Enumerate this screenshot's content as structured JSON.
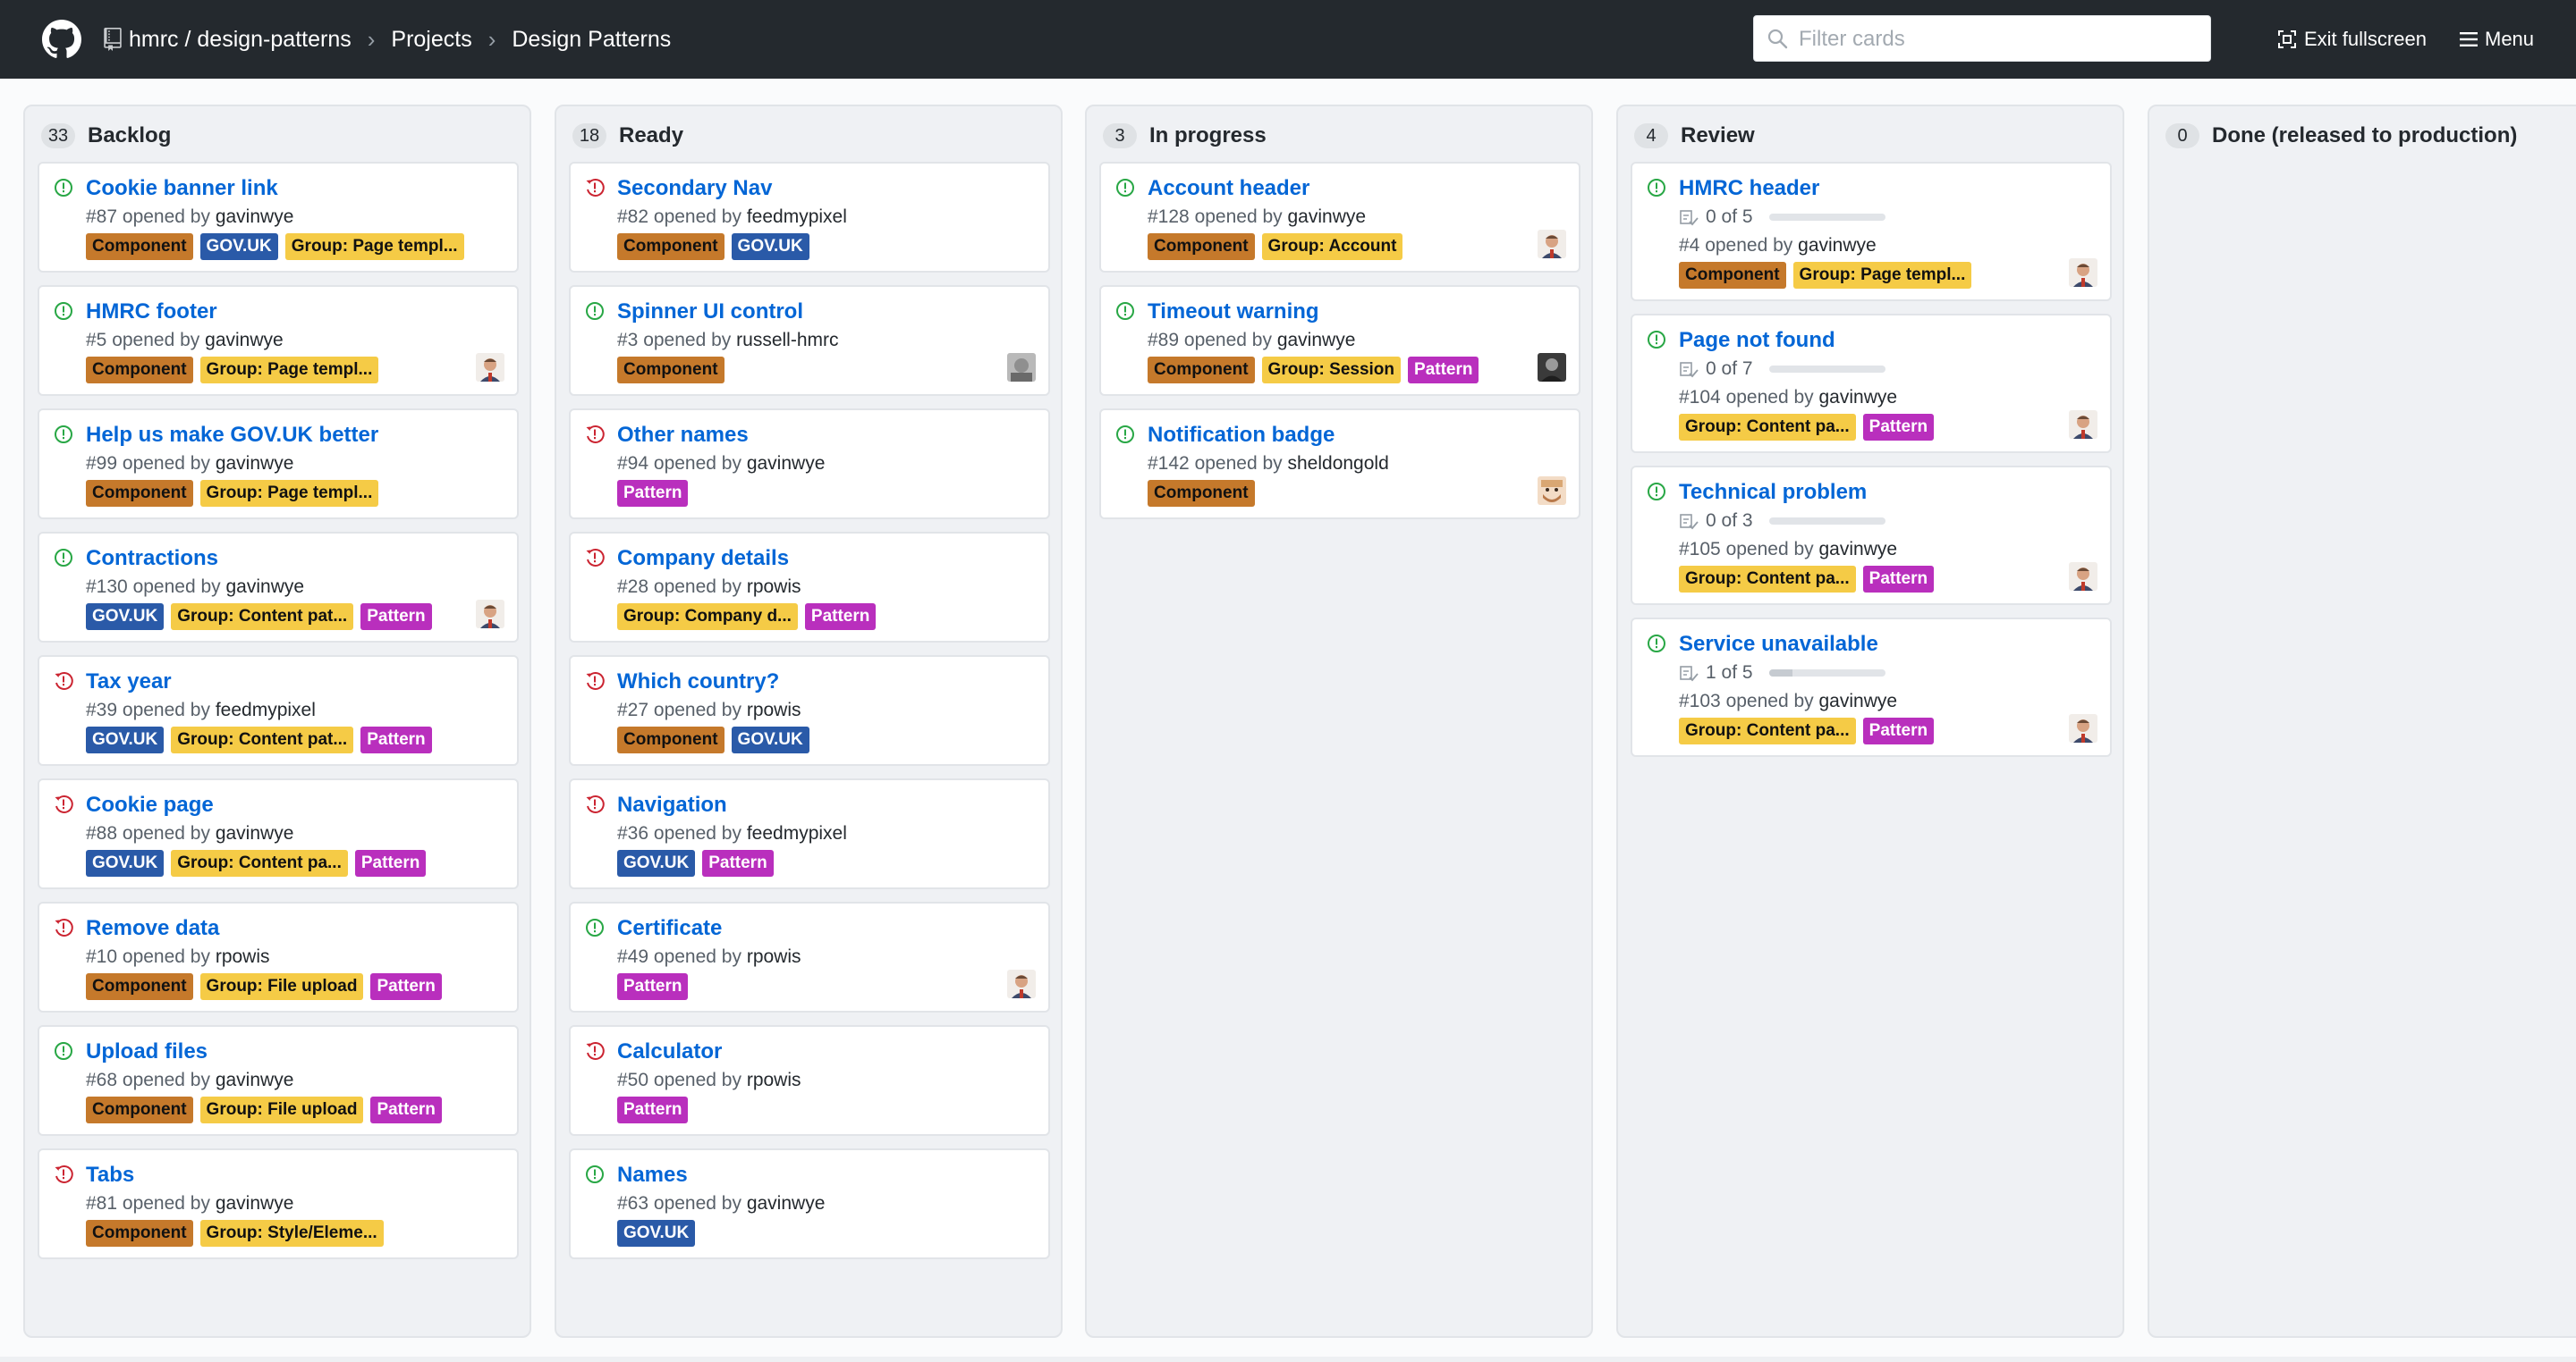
{
  "header": {
    "breadcrumb": {
      "repo": "hmrc / design-patterns",
      "projects": "Projects",
      "project": "Design Patterns",
      "separator": "›"
    },
    "filter_placeholder": "Filter cards",
    "exit_fullscreen": "Exit fullscreen",
    "menu": "Menu"
  },
  "colors": {
    "Component": "#c5792b",
    "GOV.UK": "#2a5aa8",
    "Group": "#f5cb46",
    "Pattern": "#b92fbd",
    "open": "#28a745",
    "closed": "#cb2431",
    "link": "#0366d6"
  },
  "columns": [
    {
      "name": "Backlog",
      "count": "33",
      "cards": [
        {
          "title": "Cookie banner link",
          "number": "#87",
          "opened_by": "opened by",
          "user": "gavinwye",
          "state": "open",
          "labels": [
            "Component",
            "GOV.UK",
            "Group: Page templ..."
          ],
          "avatar": ""
        },
        {
          "title": "HMRC footer",
          "number": "#5",
          "opened_by": "opened by",
          "user": "gavinwye",
          "state": "open",
          "labels": [
            "Component",
            "Group: Page templ..."
          ],
          "avatar": "face"
        },
        {
          "title": "Help us make GOV.UK better",
          "number": "#99",
          "opened_by": "opened by",
          "user": "gavinwye",
          "state": "open",
          "labels": [
            "Component",
            "Group: Page templ..."
          ],
          "avatar": ""
        },
        {
          "title": "Contractions",
          "number": "#130",
          "opened_by": "opened by",
          "user": "gavinwye",
          "state": "open",
          "labels": [
            "GOV.UK",
            "Group: Content pat...",
            "Pattern"
          ],
          "avatar": "face"
        },
        {
          "title": "Tax year",
          "number": "#39",
          "opened_by": "opened by",
          "user": "feedmypixel",
          "state": "closed",
          "labels": [
            "GOV.UK",
            "Group: Content pat...",
            "Pattern"
          ],
          "avatar": ""
        },
        {
          "title": "Cookie page",
          "number": "#88",
          "opened_by": "opened by",
          "user": "gavinwye",
          "state": "closed",
          "labels": [
            "GOV.UK",
            "Group: Content pa...",
            "Pattern"
          ],
          "avatar": ""
        },
        {
          "title": "Remove data",
          "number": "#10",
          "opened_by": "opened by",
          "user": "rpowis",
          "state": "closed",
          "labels": [
            "Component",
            "Group: File upload",
            "Pattern"
          ],
          "avatar": ""
        },
        {
          "title": "Upload files",
          "number": "#68",
          "opened_by": "opened by",
          "user": "gavinwye",
          "state": "open",
          "labels": [
            "Component",
            "Group: File upload",
            "Pattern"
          ],
          "avatar": ""
        },
        {
          "title": "Tabs",
          "number": "#81",
          "opened_by": "opened by",
          "user": "gavinwye",
          "state": "closed",
          "labels": [
            "Component",
            "Group: Style/Eleme..."
          ],
          "avatar": ""
        }
      ]
    },
    {
      "name": "Ready",
      "count": "18",
      "cards": [
        {
          "title": "Secondary Nav",
          "number": "#82",
          "opened_by": "opened by",
          "user": "feedmypixel",
          "state": "closed",
          "labels": [
            "Component",
            "GOV.UK"
          ],
          "avatar": ""
        },
        {
          "title": "Spinner UI control",
          "number": "#3",
          "opened_by": "opened by",
          "user": "russell-hmrc",
          "state": "open",
          "labels": [
            "Component"
          ],
          "avatar": "grey"
        },
        {
          "title": "Other names",
          "number": "#94",
          "opened_by": "opened by",
          "user": "gavinwye",
          "state": "closed",
          "labels": [
            "Pattern"
          ],
          "avatar": ""
        },
        {
          "title": "Company details",
          "number": "#28",
          "opened_by": "opened by",
          "user": "rpowis",
          "state": "closed",
          "labels": [
            "Group: Company d...",
            "Pattern"
          ],
          "avatar": ""
        },
        {
          "title": "Which country?",
          "number": "#27",
          "opened_by": "opened by",
          "user": "rpowis",
          "state": "closed",
          "labels": [
            "Component",
            "GOV.UK"
          ],
          "avatar": ""
        },
        {
          "title": "Navigation",
          "number": "#36",
          "opened_by": "opened by",
          "user": "feedmypixel",
          "state": "closed",
          "labels": [
            "GOV.UK",
            "Pattern"
          ],
          "avatar": ""
        },
        {
          "title": "Certificate",
          "number": "#49",
          "opened_by": "opened by",
          "user": "rpowis",
          "state": "open",
          "labels": [
            "Pattern"
          ],
          "avatar": "face"
        },
        {
          "title": "Calculator",
          "number": "#50",
          "opened_by": "opened by",
          "user": "rpowis",
          "state": "closed",
          "labels": [
            "Pattern"
          ],
          "avatar": ""
        },
        {
          "title": "Names",
          "number": "#63",
          "opened_by": "opened by",
          "user": "gavinwye",
          "state": "open",
          "labels": [
            "GOV.UK"
          ],
          "avatar": ""
        }
      ]
    },
    {
      "name": "In progress",
      "count": "3",
      "cards": [
        {
          "title": "Account header",
          "number": "#128",
          "opened_by": "opened by",
          "user": "gavinwye",
          "state": "open",
          "labels": [
            "Component",
            "Group: Account"
          ],
          "avatar": "face"
        },
        {
          "title": "Timeout warning",
          "number": "#89",
          "opened_by": "opened by",
          "user": "gavinwye",
          "state": "open",
          "labels": [
            "Component",
            "Group: Session",
            "Pattern"
          ],
          "avatar": "dark"
        },
        {
          "title": "Notification badge",
          "number": "#142",
          "opened_by": "opened by",
          "user": "sheldongold",
          "state": "open",
          "labels": [
            "Component"
          ],
          "avatar": "beard"
        }
      ]
    },
    {
      "name": "Review",
      "count": "4",
      "cards": [
        {
          "title": "HMRC header",
          "progress": "0 of 5",
          "progress_fraction": 0,
          "number": "#4",
          "opened_by": "opened by",
          "user": "gavinwye",
          "state": "open",
          "labels": [
            "Component",
            "Group: Page templ..."
          ],
          "avatar": "face"
        },
        {
          "title": "Page not found",
          "progress": "0 of 7",
          "progress_fraction": 0,
          "number": "#104",
          "opened_by": "opened by",
          "user": "gavinwye",
          "state": "open",
          "labels": [
            "Group: Content pa...",
            "Pattern"
          ],
          "avatar": "face"
        },
        {
          "title": "Technical problem",
          "progress": "0 of 3",
          "progress_fraction": 0,
          "number": "#105",
          "opened_by": "opened by",
          "user": "gavinwye",
          "state": "open",
          "labels": [
            "Group: Content pa...",
            "Pattern"
          ],
          "avatar": "face"
        },
        {
          "title": "Service unavailable",
          "progress": "1 of 5",
          "progress_fraction": 0.2,
          "number": "#103",
          "opened_by": "opened by",
          "user": "gavinwye",
          "state": "open",
          "labels": [
            "Group: Content pa...",
            "Pattern"
          ],
          "avatar": "face"
        }
      ]
    },
    {
      "name": "Done (released to production)",
      "count": "0",
      "cards": []
    }
  ]
}
